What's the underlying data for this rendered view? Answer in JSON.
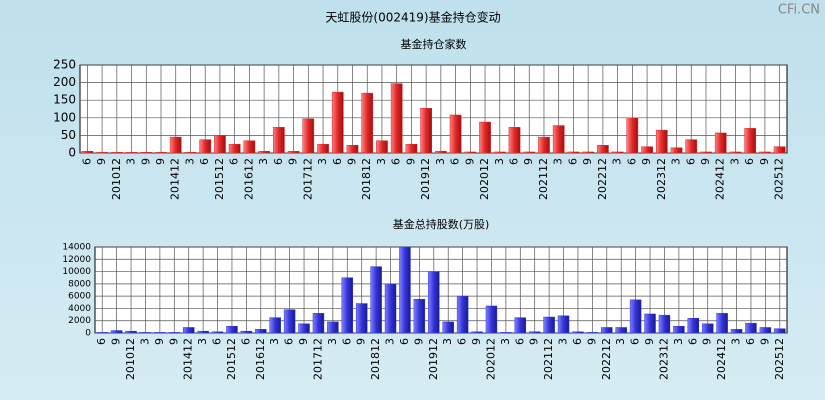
{
  "title": "天虹股份(002419)基金持仓变动",
  "watermark": "CFi.CN",
  "chart_data": [
    {
      "type": "bar",
      "title": "基金持仓家数",
      "color": "#e02828",
      "categories": [
        "6",
        "9",
        "201012",
        "3",
        "9",
        "9",
        "201412",
        "3",
        "6",
        "201512",
        "6",
        "201612",
        "3",
        "6",
        "9",
        "201712",
        "3",
        "6",
        "9",
        "201812",
        "3",
        "6",
        "9",
        "201912",
        "3",
        "6",
        "9",
        "202012",
        "3",
        "6",
        "9",
        "202112",
        "3",
        "6",
        "9",
        "202212",
        "3",
        "6",
        "9",
        "202312",
        "3",
        "6",
        "9",
        "202412",
        "3",
        "6",
        "9",
        "202512"
      ],
      "values": [
        5,
        2,
        2,
        2,
        2,
        2,
        45,
        2,
        38,
        50,
        25,
        35,
        5,
        73,
        5,
        97,
        25,
        173,
        22,
        170,
        35,
        197,
        25,
        127,
        5,
        108,
        3,
        88,
        3,
        73,
        3,
        45,
        78,
        3,
        3,
        22,
        3,
        100,
        18,
        65,
        15,
        38,
        3,
        57,
        3,
        70,
        3,
        18
      ],
      "ylim": [
        0,
        250
      ],
      "yticks": [
        0,
        50,
        100,
        150,
        200,
        250
      ],
      "grid": true
    },
    {
      "type": "bar",
      "title": "基金总持股数(万股)",
      "color": "#3434d8",
      "categories": [
        "6",
        "9",
        "201012",
        "3",
        "9",
        "9",
        "201412",
        "3",
        "6",
        "201512",
        "6",
        "201612",
        "3",
        "6",
        "9",
        "201712",
        "3",
        "6",
        "9",
        "201812",
        "3",
        "6",
        "9",
        "201912",
        "3",
        "6",
        "9",
        "202012",
        "3",
        "6",
        "9",
        "202112",
        "3",
        "6",
        "9",
        "202212",
        "3",
        "6",
        "9",
        "202312",
        "3",
        "6",
        "9",
        "202412",
        "3",
        "6",
        "9",
        "202512"
      ],
      "values": [
        100,
        400,
        300,
        100,
        100,
        100,
        900,
        300,
        200,
        1100,
        300,
        600,
        2500,
        3800,
        1500,
        3200,
        1800,
        9000,
        4800,
        10800,
        8000,
        14000,
        5500,
        10000,
        1800,
        6000,
        200,
        4400,
        100,
        2500,
        200,
        2600,
        2800,
        200,
        100,
        900,
        900,
        5400,
        3100,
        2900,
        1100,
        2400,
        1500,
        3200,
        600,
        1600,
        900,
        700
      ],
      "ylim": [
        0,
        14000
      ],
      "yticks": [
        0,
        2000,
        4000,
        6000,
        8000,
        10000,
        12000,
        14000
      ],
      "grid": true
    }
  ]
}
